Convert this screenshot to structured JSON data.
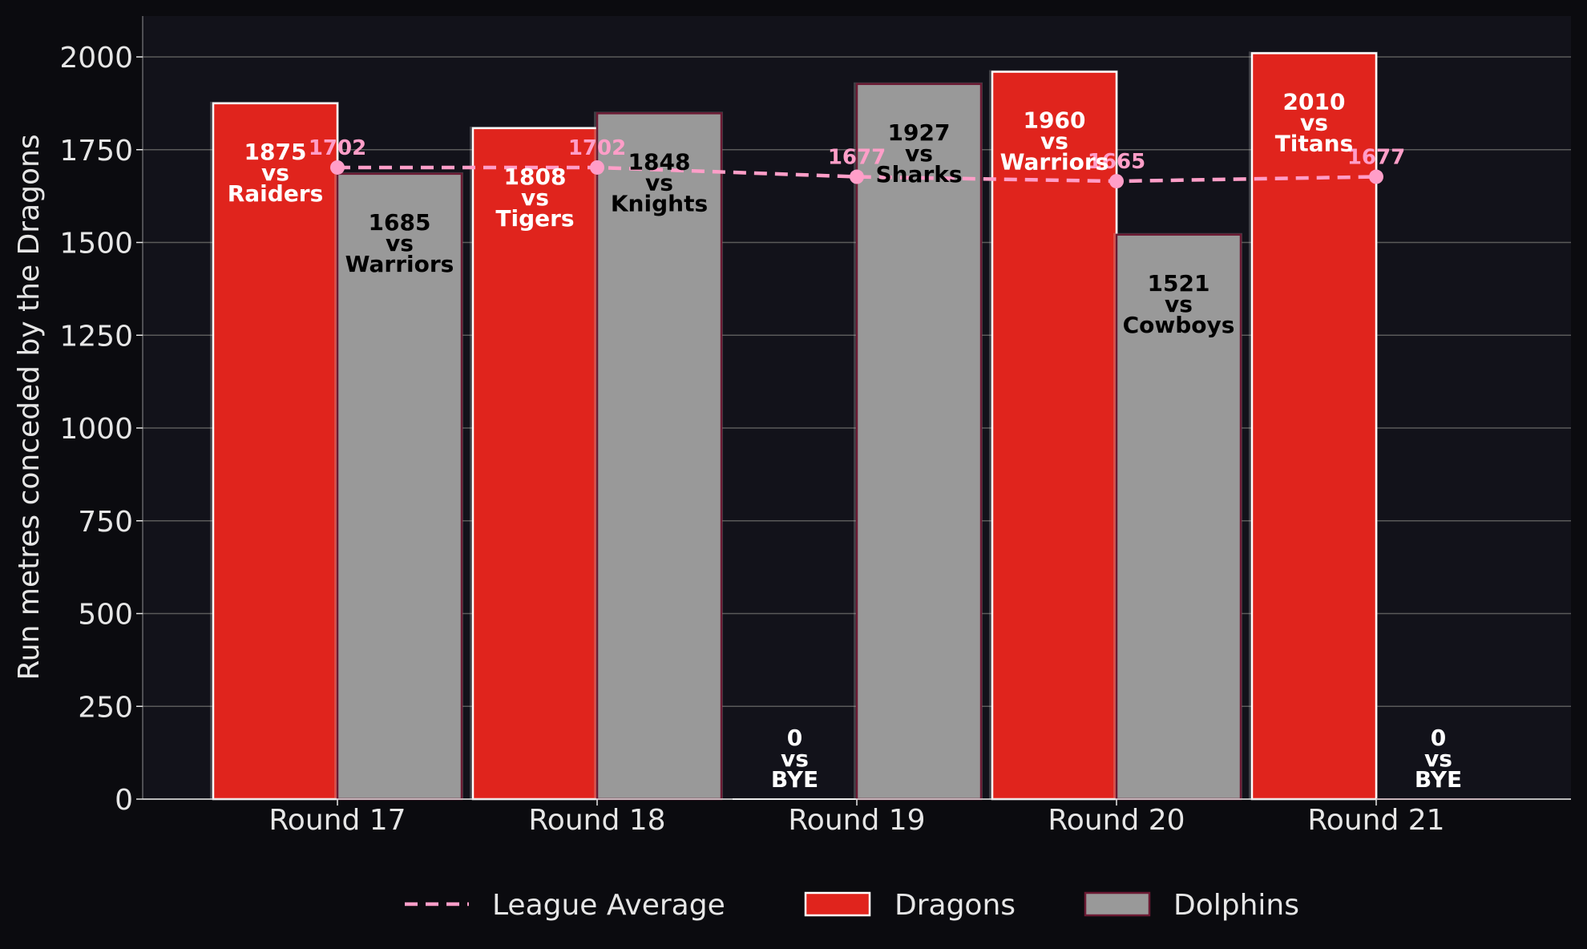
{
  "chart_data": {
    "type": "bar",
    "categories": [
      "Round 17",
      "Round 18",
      "Round 19",
      "Round 20",
      "Round 21"
    ],
    "ylabel": "Run metres conceded by the Dragons",
    "ylim": [
      0,
      2100
    ],
    "yticks": [
      0,
      250,
      500,
      750,
      1000,
      1250,
      1500,
      1750,
      2000
    ],
    "grid": true,
    "legend_position": "bottom",
    "series": [
      {
        "name": "Dragons",
        "color": "#e0241d",
        "edge": "#ffffff",
        "values": [
          1875,
          1808,
          0,
          1960,
          2010
        ],
        "opponents": [
          "Raiders",
          "Tigers",
          "BYE",
          "Warriors",
          "Titans"
        ],
        "label_color": "#ffffff"
      },
      {
        "name": "Dolphins",
        "color": "#999999",
        "edge": "#6b1a33",
        "values": [
          1685,
          1848,
          1927,
          1521,
          0
        ],
        "opponents": [
          "Warriors",
          "Knights",
          "Sharks",
          "Cowboys",
          "BYE"
        ],
        "label_color": "#000000"
      }
    ],
    "line": {
      "name": "League Average",
      "color": "#ff9ec8",
      "values": [
        1702,
        1702,
        1677,
        1665,
        1677
      ]
    },
    "colors": {
      "background": "#0b0b0f",
      "plot_background": "#12121a",
      "grid": "#5a5a5a",
      "text": "#e6e6e6"
    }
  }
}
